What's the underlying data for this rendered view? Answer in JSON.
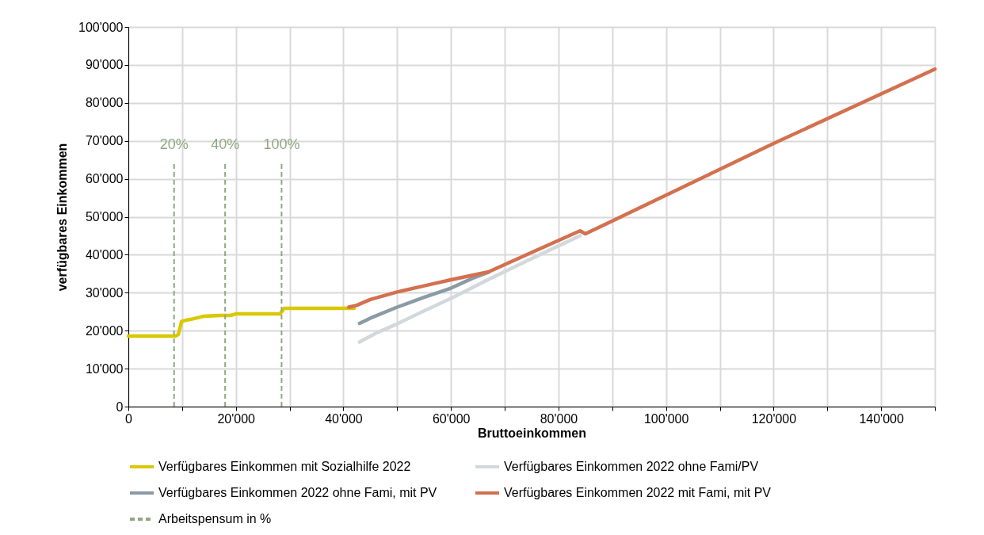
{
  "chart_data": {
    "type": "line",
    "xlabel": "Bruttoeinkommen",
    "ylabel": "verfügbares Einkommen",
    "xlim": [
      0,
      150000
    ],
    "ylim": [
      0,
      100000
    ],
    "xticks": [
      0,
      {
        "value": 10000,
        "label": null
      },
      {
        "value": 20000,
        "label": "20'000"
      },
      {
        "value": 30000,
        "label": null
      },
      {
        "value": 40000,
        "label": "40'000"
      },
      {
        "value": 50000,
        "label": null
      },
      {
        "value": 60000,
        "label": "60'000"
      },
      {
        "value": 70000,
        "label": null
      },
      {
        "value": 80000,
        "label": "80'000"
      },
      {
        "value": 90000,
        "label": null
      },
      {
        "value": 100000,
        "label": "100'000"
      },
      {
        "value": 110000,
        "label": null
      },
      {
        "value": 120000,
        "label": "120'000"
      },
      {
        "value": 130000,
        "label": null
      },
      {
        "value": 140000,
        "label": "140'000"
      },
      {
        "value": 150000,
        "label": null
      }
    ],
    "yticks": [
      0,
      {
        "value": 10000,
        "label": "10'000"
      },
      {
        "value": 20000,
        "label": "20'000"
      },
      {
        "value": 30000,
        "label": "30'000"
      },
      {
        "value": 40000,
        "label": "40'000"
      },
      {
        "value": 50000,
        "label": "50'000"
      },
      {
        "value": 60000,
        "label": "60'000"
      },
      {
        "value": 70000,
        "label": "70'000"
      },
      {
        "value": 80000,
        "label": "80'000"
      },
      {
        "value": 90000,
        "label": "90'000"
      },
      {
        "value": 100000,
        "label": "100'000"
      }
    ],
    "grid": true,
    "legend": "bottom",
    "marker": "none",
    "line_style": "solid",
    "series": [
      {
        "name": "Verfügbares Einkommen mit Sozialhilfe 2022",
        "color": "#d9c800",
        "x": [
          0,
          8800,
          9300,
          9900,
          10500,
          12000,
          14000,
          17000,
          19000,
          20000,
          27700,
          28200,
          29000,
          35000,
          42000
        ],
        "values": [
          18600,
          18600,
          19000,
          22400,
          22700,
          23100,
          23800,
          24000,
          24000,
          24400,
          24400,
          24400,
          25900,
          25900,
          25900
        ]
      },
      {
        "name": "Verfügbares Einkommen 2022 ohne Fami/PV",
        "color": "#d2d8dc",
        "x": [
          43000,
          46000,
          50000,
          55000,
          60000,
          67000,
          75000,
          84000
        ],
        "values": [
          17000,
          19300,
          21800,
          25200,
          28500,
          33500,
          39000,
          45000
        ]
      },
      {
        "name": "Verfügbares Einkommen 2022 ohne Fami, mit PV",
        "color": "#8a9ba5",
        "x": [
          43000,
          45000,
          50000,
          55000,
          60000,
          64000,
          67000
        ],
        "values": [
          21900,
          23300,
          26200,
          28800,
          31200,
          33800,
          35400
        ]
      },
      {
        "name": "Verfügbares Einkommen 2022 mit Fami, mit PV",
        "color": "#d4704f",
        "x": [
          41000,
          42500,
          45000,
          50000,
          55000,
          60000,
          64000,
          67000,
          75000,
          84000,
          85000,
          100000,
          120000,
          150000
        ],
        "values": [
          26200,
          26700,
          28200,
          30200,
          31800,
          33400,
          34600,
          35500,
          40600,
          46300,
          45500,
          55700,
          69300,
          88900
        ]
      }
    ],
    "ref_lines": [
      {
        "axis": "x",
        "value": 8500,
        "color": "#8fa882",
        "line_style": "dashed"
      },
      {
        "axis": "x",
        "value": 18000,
        "color": "#8fa882",
        "line_style": "dashed"
      },
      {
        "axis": "x",
        "value": 28500,
        "color": "#8fa882",
        "line_style": "dashed"
      }
    ],
    "annotations": [
      "Arbeitspensum in %",
      "20%",
      "40%",
      "100%"
    ]
  }
}
